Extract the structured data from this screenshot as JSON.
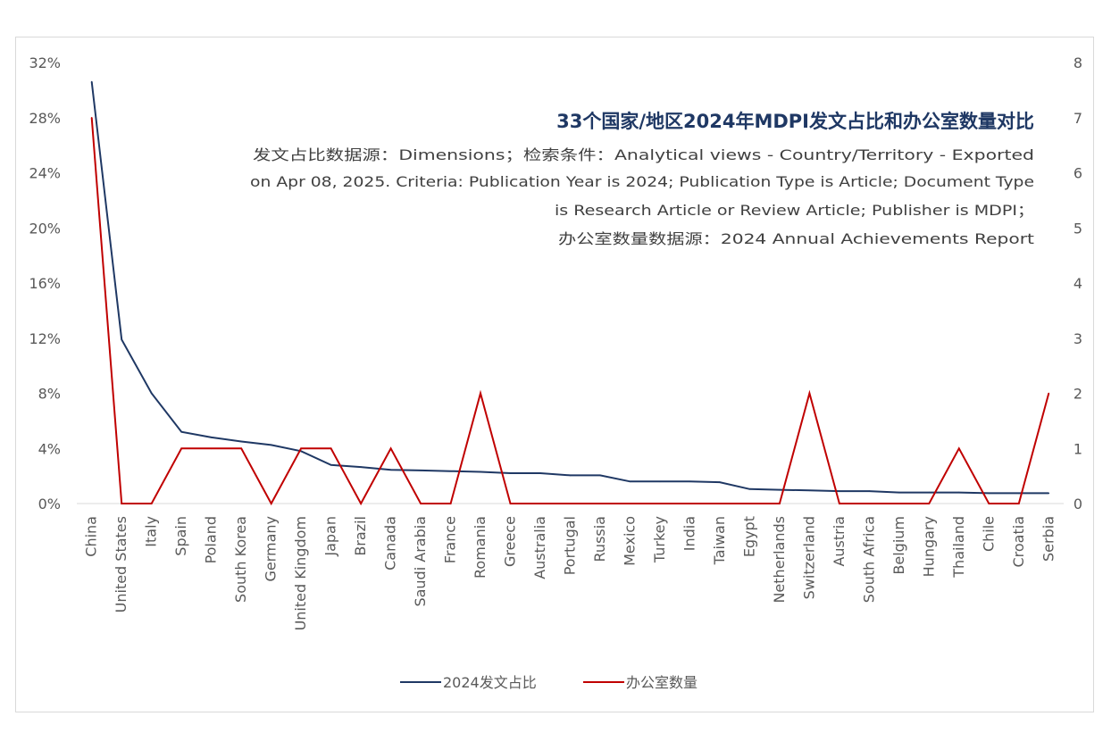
{
  "chart_data": {
    "type": "line",
    "title": "33个国家/地区2024年MDPI发文占比和办公室数量对比",
    "subtitle_lines": [
      "发文占比数据源：Dimensions；检索条件：Analytical views - Country/Territory - Exported",
      "on Apr 08, 2025. Criteria: Publication Year is 2024; Publication Type is Article; Document Type",
      "is Research Article or Review Article; Publisher is MDPI；",
      "办公室数量数据源：2024 Annual Achievements Report"
    ],
    "categories": [
      "China",
      "United States",
      "Italy",
      "Spain",
      "Poland",
      "South Korea",
      "Germany",
      "United Kingdom",
      "Japan",
      "Brazil",
      "Canada",
      "Saudi Arabia",
      "France",
      "Romania",
      "Greece",
      "Australia",
      "Portugal",
      "Russia",
      "Mexico",
      "Turkey",
      "India",
      "Taiwan",
      "Egypt",
      "Netherlands",
      "Switzerland",
      "Austria",
      "South Africa",
      "Belgium",
      "Hungary",
      "Thailand",
      "Chile",
      "Croatia",
      "Serbia"
    ],
    "series": [
      {
        "name": "2024发文占比",
        "axis": "left",
        "color": "#1f3864",
        "values": [
          30.6,
          11.9,
          8.0,
          5.2,
          4.8,
          4.5,
          4.25,
          3.8,
          2.8,
          2.65,
          2.45,
          2.4,
          2.35,
          2.3,
          2.2,
          2.2,
          2.05,
          2.05,
          1.6,
          1.6,
          1.6,
          1.55,
          1.05,
          1.0,
          0.95,
          0.9,
          0.9,
          0.8,
          0.8,
          0.8,
          0.75,
          0.75,
          0.75
        ]
      },
      {
        "name": "办公室数量",
        "axis": "right",
        "color": "#c00000",
        "values": [
          7,
          0,
          0,
          1,
          1,
          1,
          0,
          1,
          1,
          0,
          1,
          0,
          0,
          2,
          0,
          0,
          0,
          0,
          0,
          0,
          0,
          0,
          0,
          0,
          2,
          0,
          0,
          0,
          0,
          1,
          0,
          0,
          2
        ]
      }
    ],
    "y_left": {
      "ylim": [
        0,
        32
      ],
      "ticks": [
        0,
        4,
        8,
        12,
        16,
        20,
        24,
        28,
        32
      ],
      "tick_labels": [
        "0%",
        "4%",
        "8%",
        "12%",
        "16%",
        "20%",
        "24%",
        "28%",
        "32%"
      ]
    },
    "y_right": {
      "ylim": [
        0,
        8
      ],
      "ticks": [
        0,
        1,
        2,
        3,
        4,
        5,
        6,
        7,
        8
      ],
      "tick_labels": [
        "0",
        "1",
        "2",
        "3",
        "4",
        "5",
        "6",
        "7",
        "8"
      ]
    },
    "grid": false,
    "legend": {
      "position": "bottom",
      "entries": [
        "2024发文占比",
        "办公室数量"
      ]
    }
  },
  "colors": {
    "title": "#1f3864",
    "text": "#404040",
    "axis": "#d9d9d9",
    "tick": "#595959"
  }
}
